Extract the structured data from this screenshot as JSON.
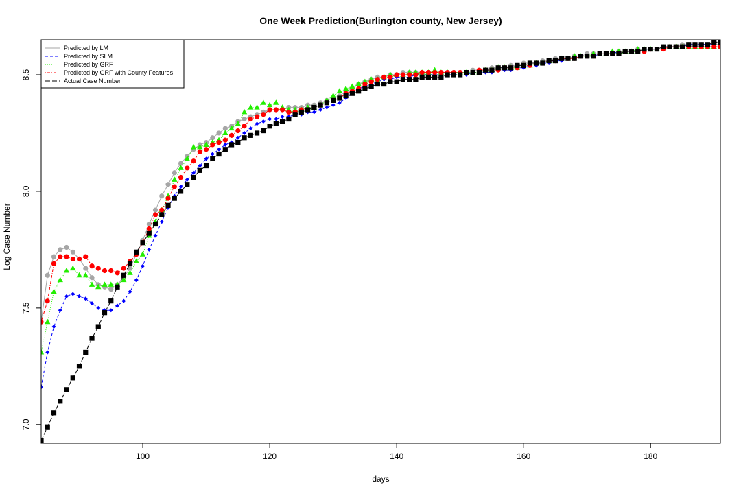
{
  "chart_data": {
    "type": "line",
    "title": "One Week Prediction(Burlington county, New Jersey)",
    "xlabel": "days",
    "ylabel": "Log Case Number",
    "xlim": [
      84,
      191
    ],
    "ylim": [
      6.92,
      8.65
    ],
    "x_ticks": [
      100,
      120,
      140,
      160,
      180
    ],
    "x_tick_labels": [
      "100",
      "120",
      "140",
      "160",
      "180"
    ],
    "y_ticks": [
      7.0,
      7.5,
      8.0,
      8.5
    ],
    "y_tick_labels": [
      "7.0",
      "7.5",
      "8.0",
      "8.5"
    ],
    "grid": false,
    "legend_position": "top-left",
    "x": [
      84,
      85,
      86,
      87,
      88,
      89,
      90,
      91,
      92,
      93,
      94,
      95,
      96,
      97,
      98,
      99,
      100,
      101,
      102,
      103,
      104,
      105,
      106,
      107,
      108,
      109,
      110,
      111,
      112,
      113,
      114,
      115,
      116,
      117,
      118,
      119,
      120,
      121,
      122,
      123,
      124,
      125,
      126,
      127,
      128,
      129,
      130,
      131,
      132,
      133,
      134,
      135,
      136,
      137,
      138,
      139,
      140,
      141,
      142,
      143,
      144,
      145,
      146,
      147,
      148,
      149,
      150,
      151,
      152,
      153,
      154,
      155,
      156,
      157,
      158,
      159,
      160,
      161,
      162,
      163,
      164,
      165,
      166,
      167,
      168,
      169,
      170,
      171,
      172,
      173,
      174,
      175,
      176,
      177,
      178,
      179,
      180,
      181,
      182,
      183,
      184,
      185,
      186,
      187,
      188,
      189,
      190,
      191
    ],
    "series": [
      {
        "name": "Predicted by LM",
        "color": "#a6a6a6",
        "line_style": "solid",
        "marker": "circle",
        "values": [
          7.44,
          7.64,
          7.72,
          7.75,
          7.76,
          7.74,
          7.71,
          7.67,
          7.63,
          7.6,
          7.59,
          7.58,
          7.6,
          7.63,
          7.67,
          7.73,
          7.79,
          7.86,
          7.92,
          7.98,
          8.03,
          8.08,
          8.12,
          8.15,
          8.18,
          8.2,
          8.21,
          8.23,
          8.25,
          8.27,
          8.28,
          8.3,
          8.31,
          8.32,
          8.33,
          8.34,
          8.35,
          8.35,
          8.35,
          8.36,
          8.36,
          8.36,
          8.37,
          8.37,
          8.38,
          8.39,
          8.4,
          8.41,
          8.43,
          8.44,
          8.46,
          8.47,
          8.48,
          8.49,
          8.49,
          8.5,
          8.5,
          8.51,
          8.51,
          8.51,
          8.51,
          8.51,
          8.51,
          8.51,
          8.51,
          8.51,
          8.51,
          8.51,
          8.52,
          8.52,
          8.52,
          8.53,
          8.53,
          8.53,
          8.54,
          8.54,
          8.55,
          8.55,
          8.55,
          8.56,
          8.56,
          8.57,
          8.57,
          8.57,
          8.58,
          8.58,
          8.59,
          8.59,
          8.59,
          8.59,
          8.59,
          8.6,
          8.6,
          8.6,
          8.61,
          8.61,
          8.61,
          8.61,
          8.62,
          8.62,
          8.62,
          8.63,
          8.63,
          8.63,
          8.63,
          8.63,
          8.63,
          8.63
        ]
      },
      {
        "name": "Predicted by SLM",
        "color": "#0000ff",
        "line_style": "dashed",
        "marker": "diamond",
        "values": [
          7.16,
          7.31,
          7.42,
          7.49,
          7.55,
          7.56,
          7.55,
          7.54,
          7.52,
          7.5,
          7.49,
          7.49,
          7.51,
          7.53,
          7.57,
          7.62,
          7.68,
          7.75,
          7.81,
          7.87,
          7.93,
          7.98,
          8.02,
          8.05,
          8.08,
          8.11,
          8.14,
          8.16,
          8.18,
          8.2,
          8.21,
          8.23,
          8.25,
          8.27,
          8.29,
          8.3,
          8.31,
          8.31,
          8.32,
          8.32,
          8.33,
          8.33,
          8.34,
          8.34,
          8.35,
          8.36,
          8.37,
          8.38,
          8.4,
          8.42,
          8.44,
          8.45,
          8.46,
          8.47,
          8.48,
          8.48,
          8.49,
          8.49,
          8.49,
          8.5,
          8.5,
          8.5,
          8.5,
          8.5,
          8.5,
          8.5,
          8.5,
          8.5,
          8.51,
          8.51,
          8.51,
          8.51,
          8.52,
          8.52,
          8.52,
          8.53,
          8.53,
          8.54,
          8.54,
          8.55,
          8.55,
          8.56,
          8.56,
          8.57,
          8.57,
          8.58,
          8.58,
          8.58,
          8.59,
          8.59,
          8.59,
          8.6,
          8.6,
          8.6,
          8.6,
          8.61,
          8.61,
          8.61,
          8.62,
          8.62,
          8.62,
          8.62,
          8.63,
          8.63,
          8.63,
          8.63,
          8.63,
          8.63
        ]
      },
      {
        "name": "Predicted by GRF",
        "color": "#22ee00",
        "line_style": "dotted",
        "marker": "triangle",
        "values": [
          7.31,
          7.44,
          7.57,
          7.62,
          7.66,
          7.67,
          7.64,
          7.64,
          7.6,
          7.59,
          7.6,
          7.6,
          7.6,
          7.62,
          7.65,
          7.7,
          7.73,
          7.81,
          7.87,
          7.92,
          7.98,
          8.05,
          8.1,
          8.14,
          8.19,
          8.19,
          8.2,
          8.21,
          8.22,
          8.25,
          8.27,
          8.29,
          8.34,
          8.36,
          8.36,
          8.38,
          8.37,
          8.38,
          8.36,
          8.35,
          8.35,
          8.35,
          8.36,
          8.36,
          8.37,
          8.39,
          8.41,
          8.43,
          8.44,
          8.45,
          8.46,
          8.47,
          8.48,
          8.48,
          8.49,
          8.5,
          8.5,
          8.5,
          8.51,
          8.51,
          8.51,
          8.51,
          8.52,
          8.51,
          8.51,
          8.51,
          8.51,
          8.51,
          8.51,
          8.51,
          8.52,
          8.52,
          8.53,
          8.53,
          8.53,
          8.53,
          8.54,
          8.54,
          8.55,
          8.55,
          8.56,
          8.56,
          8.57,
          8.57,
          8.58,
          8.58,
          8.58,
          8.59,
          8.59,
          8.59,
          8.6,
          8.6,
          8.6,
          8.6,
          8.61,
          8.61,
          8.61,
          8.61,
          8.62,
          8.62,
          8.62,
          8.62,
          8.62,
          8.62,
          8.62,
          8.62,
          8.62,
          8.62
        ]
      },
      {
        "name": "Predicted by GRF with County Features",
        "color": "#ff0000",
        "line_style": "dotdash",
        "marker": "circle",
        "values": [
          7.44,
          7.53,
          7.69,
          7.72,
          7.72,
          7.71,
          7.71,
          7.72,
          7.68,
          7.67,
          7.66,
          7.66,
          7.65,
          7.67,
          7.7,
          7.73,
          7.78,
          7.84,
          7.9,
          7.92,
          7.97,
          8.02,
          8.06,
          8.1,
          8.13,
          8.17,
          8.18,
          8.2,
          8.21,
          8.22,
          8.24,
          8.26,
          8.28,
          8.31,
          8.32,
          8.33,
          8.35,
          8.35,
          8.35,
          8.34,
          8.34,
          8.35,
          8.35,
          8.36,
          8.37,
          8.38,
          8.39,
          8.4,
          8.42,
          8.43,
          8.44,
          8.46,
          8.47,
          8.48,
          8.49,
          8.49,
          8.5,
          8.5,
          8.5,
          8.5,
          8.51,
          8.51,
          8.51,
          8.51,
          8.51,
          8.51,
          8.51,
          8.51,
          8.51,
          8.52,
          8.52,
          8.52,
          8.52,
          8.53,
          8.53,
          8.53,
          8.54,
          8.54,
          8.55,
          8.55,
          8.56,
          8.56,
          8.57,
          8.57,
          8.57,
          8.58,
          8.58,
          8.58,
          8.59,
          8.59,
          8.59,
          8.59,
          8.6,
          8.6,
          8.6,
          8.6,
          8.61,
          8.61,
          8.61,
          8.62,
          8.62,
          8.62,
          8.62,
          8.62,
          8.62,
          8.62,
          8.62,
          8.62
        ]
      },
      {
        "name": "Actual Case Number",
        "color": "#000000",
        "line_style": "longdash",
        "marker": "square",
        "values": [
          6.93,
          6.99,
          7.05,
          7.1,
          7.15,
          7.2,
          7.25,
          7.31,
          7.37,
          7.42,
          7.48,
          7.53,
          7.59,
          7.64,
          7.69,
          7.74,
          7.78,
          7.82,
          7.86,
          7.9,
          7.94,
          7.97,
          8.0,
          8.03,
          8.06,
          8.09,
          8.11,
          8.14,
          8.16,
          8.18,
          8.2,
          8.21,
          8.23,
          8.24,
          8.25,
          8.26,
          8.28,
          8.29,
          8.3,
          8.31,
          8.33,
          8.34,
          8.35,
          8.36,
          8.37,
          8.38,
          8.39,
          8.4,
          8.41,
          8.42,
          8.43,
          8.44,
          8.45,
          8.46,
          8.46,
          8.47,
          8.47,
          8.48,
          8.48,
          8.48,
          8.49,
          8.49,
          8.49,
          8.49,
          8.5,
          8.5,
          8.5,
          8.51,
          8.51,
          8.51,
          8.52,
          8.52,
          8.53,
          8.53,
          8.53,
          8.54,
          8.54,
          8.55,
          8.55,
          8.55,
          8.56,
          8.56,
          8.57,
          8.57,
          8.57,
          8.58,
          8.58,
          8.58,
          8.59,
          8.59,
          8.59,
          8.59,
          8.6,
          8.6,
          8.6,
          8.61,
          8.61,
          8.61,
          8.62,
          8.62,
          8.62,
          8.62,
          8.63,
          8.63,
          8.63,
          8.63,
          8.64,
          8.64
        ]
      }
    ]
  }
}
